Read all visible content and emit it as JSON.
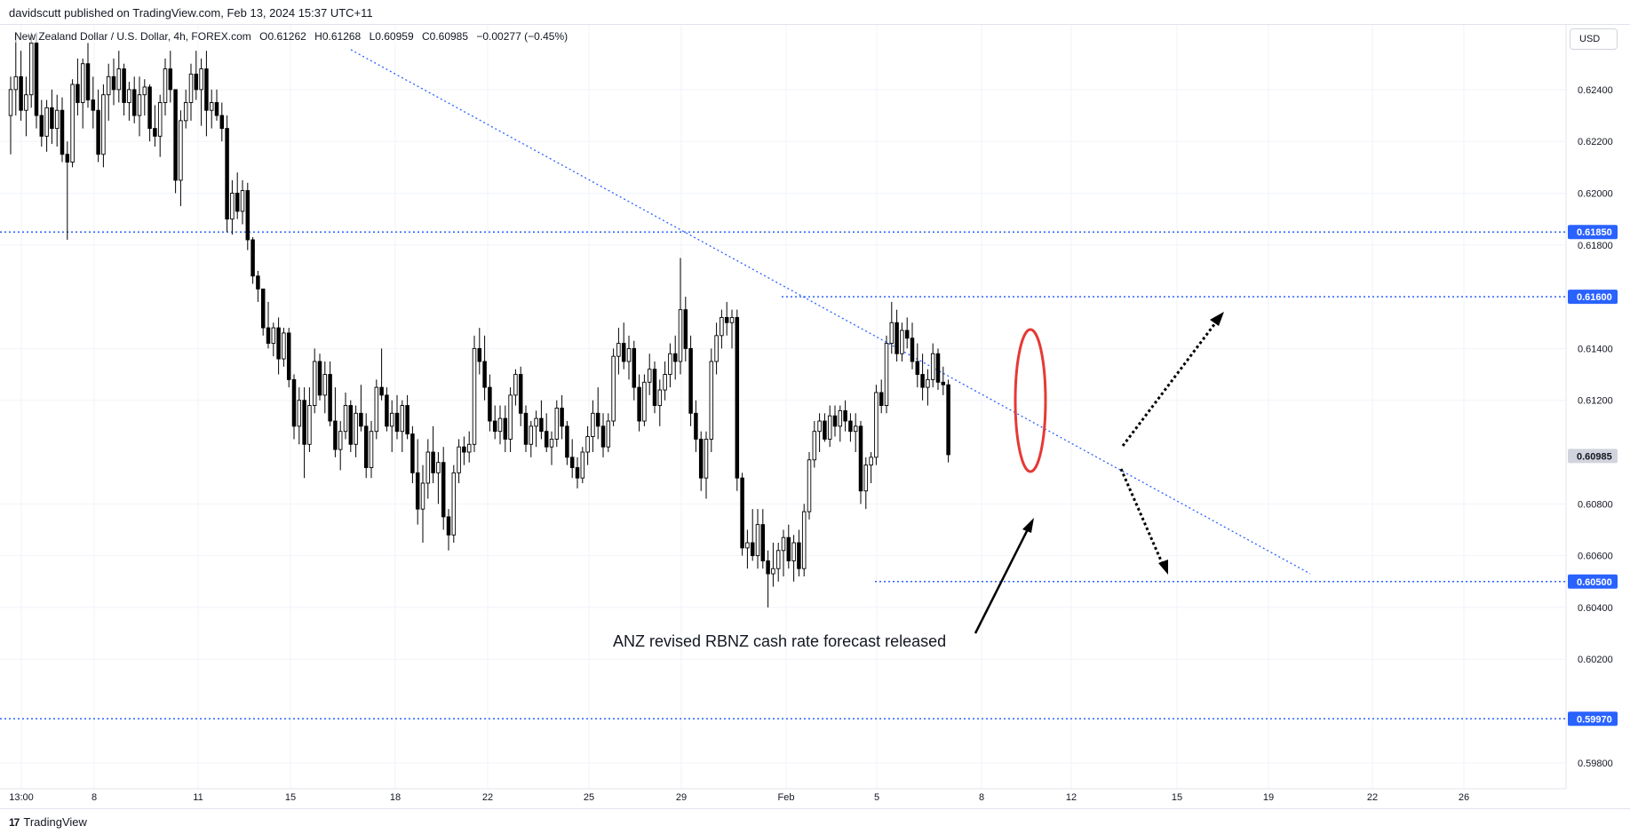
{
  "header": {
    "publish_line": "davidscutt published on TradingView.com, Feb 13, 2024 15:37 UTC+11"
  },
  "legend": {
    "symbol": "New Zealand Dollar / U.S. Dollar, 4h, FOREX.com",
    "open": "O0.61262",
    "high": "H0.61268",
    "low": "L0.60959",
    "close": "C0.60985",
    "change": "−0.00277 (−0.45%)"
  },
  "currency_button": "USD",
  "annotation": "ANZ revised RBNZ cash rate forecast released",
  "footer": {
    "brand": "TradingView",
    "logo": "17"
  },
  "colors": {
    "candle_up_fill": "#ffffff",
    "candle_down_fill": "#000000",
    "level_line": "#2962ff",
    "trend_line": "#2962ff",
    "highlight_ellipse": "#e53935",
    "arrow": "#000000",
    "current_price_badge": "#d1d4dc",
    "level_badge": "#2962ff"
  },
  "chart_data": {
    "type": "candlestick",
    "timeframe": "4h",
    "x_ticks": [
      "13:00",
      "8",
      "11",
      "15",
      "18",
      "22",
      "25",
      "29",
      "Feb",
      "5",
      "8",
      "12",
      "15",
      "19",
      "22",
      "26"
    ],
    "y_ticks": [
      "0.62400",
      "0.62200",
      "0.62000",
      "0.61800",
      "0.61400",
      "0.61200",
      "0.60800",
      "0.60600",
      "0.60400",
      "0.60200",
      "0.59800"
    ],
    "ylim": [
      0.597,
      0.6265
    ],
    "price_labels": [
      {
        "value": 0.6185,
        "text": "0.61850",
        "style": "level"
      },
      {
        "value": 0.616,
        "text": "0.61600",
        "style": "level"
      },
      {
        "value": 0.60985,
        "text": "0.60985",
        "style": "current"
      },
      {
        "value": 0.605,
        "text": "0.60500",
        "style": "level"
      },
      {
        "value": 0.5997,
        "text": "0.59970",
        "style": "level"
      }
    ],
    "horizontal_levels": [
      0.6185,
      0.616,
      0.605,
      0.5997
    ],
    "candles": [
      [
        0.623,
        0.6245,
        0.6215,
        0.624
      ],
      [
        0.624,
        0.6262,
        0.623,
        0.6245
      ],
      [
        0.6245,
        0.6255,
        0.6228,
        0.6232
      ],
      [
        0.6232,
        0.6245,
        0.6222,
        0.6238
      ],
      [
        0.6238,
        0.6262,
        0.6233,
        0.6258
      ],
      [
        0.6258,
        0.6262,
        0.6225,
        0.623
      ],
      [
        0.623,
        0.6236,
        0.6218,
        0.6222
      ],
      [
        0.6222,
        0.6236,
        0.6216,
        0.6233
      ],
      [
        0.6233,
        0.624,
        0.6219,
        0.6225
      ],
      [
        0.6225,
        0.6238,
        0.6218,
        0.6232
      ],
      [
        0.6232,
        0.6237,
        0.6212,
        0.6215
      ],
      [
        0.6215,
        0.622,
        0.6182,
        0.6212
      ],
      [
        0.6212,
        0.6244,
        0.621,
        0.6242
      ],
      [
        0.6242,
        0.6252,
        0.623,
        0.6235
      ],
      [
        0.6235,
        0.6252,
        0.6225,
        0.625
      ],
      [
        0.625,
        0.6258,
        0.6233,
        0.6236
      ],
      [
        0.6236,
        0.6245,
        0.6225,
        0.6232
      ],
      [
        0.6232,
        0.624,
        0.6212,
        0.6215
      ],
      [
        0.6215,
        0.6242,
        0.621,
        0.6238
      ],
      [
        0.6238,
        0.625,
        0.6228,
        0.6245
      ],
      [
        0.6245,
        0.6252,
        0.6234,
        0.624
      ],
      [
        0.624,
        0.6255,
        0.6235,
        0.6248
      ],
      [
        0.6248,
        0.625,
        0.623,
        0.6235
      ],
      [
        0.6235,
        0.6243,
        0.6228,
        0.624
      ],
      [
        0.624,
        0.6245,
        0.6227,
        0.623
      ],
      [
        0.623,
        0.6245,
        0.6222,
        0.6238
      ],
      [
        0.6238,
        0.6244,
        0.623,
        0.6241
      ],
      [
        0.6241,
        0.6242,
        0.622,
        0.6225
      ],
      [
        0.6225,
        0.6234,
        0.6218,
        0.6222
      ],
      [
        0.6222,
        0.6238,
        0.6214,
        0.6235
      ],
      [
        0.6235,
        0.6252,
        0.623,
        0.6248
      ],
      [
        0.6248,
        0.6255,
        0.6235,
        0.624
      ],
      [
        0.624,
        0.624,
        0.62,
        0.6205
      ],
      [
        0.6205,
        0.6232,
        0.6195,
        0.6228
      ],
      [
        0.6228,
        0.624,
        0.6225,
        0.6235
      ],
      [
        0.6235,
        0.625,
        0.6228,
        0.6246
      ],
      [
        0.6246,
        0.6255,
        0.6236,
        0.624
      ],
      [
        0.624,
        0.6252,
        0.6226,
        0.6248
      ],
      [
        0.6248,
        0.6255,
        0.6222,
        0.6232
      ],
      [
        0.6232,
        0.624,
        0.6225,
        0.6235
      ],
      [
        0.6235,
        0.624,
        0.6228,
        0.623
      ],
      [
        0.623,
        0.6235,
        0.622,
        0.6225
      ],
      [
        0.6225,
        0.623,
        0.6185,
        0.619
      ],
      [
        0.619,
        0.6205,
        0.6184,
        0.62
      ],
      [
        0.62,
        0.6208,
        0.619,
        0.6193
      ],
      [
        0.6193,
        0.6205,
        0.6188,
        0.6201
      ],
      [
        0.6201,
        0.6204,
        0.6178,
        0.6182
      ],
      [
        0.6182,
        0.6183,
        0.6165,
        0.6168
      ],
      [
        0.6168,
        0.617,
        0.6158,
        0.6163
      ],
      [
        0.6163,
        0.6163,
        0.6145,
        0.6148
      ],
      [
        0.6148,
        0.6158,
        0.614,
        0.6142
      ],
      [
        0.6142,
        0.615,
        0.6137,
        0.6148
      ],
      [
        0.6148,
        0.6152,
        0.613,
        0.6136
      ],
      [
        0.6136,
        0.6148,
        0.6133,
        0.6146
      ],
      [
        0.6146,
        0.6148,
        0.6125,
        0.6128
      ],
      [
        0.6128,
        0.613,
        0.6105,
        0.611
      ],
      [
        0.611,
        0.6125,
        0.6103,
        0.612
      ],
      [
        0.612,
        0.6125,
        0.609,
        0.6103
      ],
      [
        0.6103,
        0.6125,
        0.61,
        0.6118
      ],
      [
        0.6118,
        0.614,
        0.6115,
        0.6135
      ],
      [
        0.6135,
        0.6138,
        0.612,
        0.6122
      ],
      [
        0.6122,
        0.6135,
        0.6115,
        0.613
      ],
      [
        0.613,
        0.6135,
        0.611,
        0.6112
      ],
      [
        0.6112,
        0.6125,
        0.6098,
        0.6101
      ],
      [
        0.6101,
        0.6112,
        0.6093,
        0.6108
      ],
      [
        0.6108,
        0.6123,
        0.6105,
        0.6118
      ],
      [
        0.6118,
        0.612,
        0.61,
        0.6103
      ],
      [
        0.6103,
        0.6118,
        0.6098,
        0.6115
      ],
      [
        0.6115,
        0.6126,
        0.6108,
        0.611
      ],
      [
        0.611,
        0.6115,
        0.609,
        0.6094
      ],
      [
        0.6094,
        0.6112,
        0.609,
        0.6108
      ],
      [
        0.6108,
        0.6128,
        0.6105,
        0.6125
      ],
      [
        0.6125,
        0.614,
        0.612,
        0.6122
      ],
      [
        0.6122,
        0.6125,
        0.6108,
        0.611
      ],
      [
        0.611,
        0.612,
        0.61,
        0.6115
      ],
      [
        0.6115,
        0.6122,
        0.6105,
        0.6108
      ],
      [
        0.6108,
        0.612,
        0.61,
        0.6118
      ],
      [
        0.6118,
        0.6122,
        0.6105,
        0.6107
      ],
      [
        0.6107,
        0.611,
        0.6088,
        0.6092
      ],
      [
        0.6092,
        0.6105,
        0.6072,
        0.6078
      ],
      [
        0.6078,
        0.6095,
        0.6065,
        0.6088
      ],
      [
        0.6088,
        0.6105,
        0.6082,
        0.61
      ],
      [
        0.61,
        0.611,
        0.6088,
        0.6092
      ],
      [
        0.6092,
        0.61,
        0.608,
        0.6096
      ],
      [
        0.6096,
        0.6102,
        0.607,
        0.6075
      ],
      [
        0.6075,
        0.6078,
        0.6062,
        0.6068
      ],
      [
        0.6068,
        0.6095,
        0.6065,
        0.6092
      ],
      [
        0.6092,
        0.6105,
        0.6088,
        0.6102
      ],
      [
        0.6102,
        0.6106,
        0.6095,
        0.61
      ],
      [
        0.61,
        0.6108,
        0.6096,
        0.6103
      ],
      [
        0.6103,
        0.6145,
        0.61,
        0.614
      ],
      [
        0.614,
        0.6148,
        0.613,
        0.6135
      ],
      [
        0.6135,
        0.6145,
        0.612,
        0.6125
      ],
      [
        0.6125,
        0.613,
        0.6108,
        0.6112
      ],
      [
        0.6112,
        0.6118,
        0.6105,
        0.6108
      ],
      [
        0.6108,
        0.6118,
        0.6103,
        0.6113
      ],
      [
        0.6113,
        0.6118,
        0.61,
        0.6105
      ],
      [
        0.6105,
        0.6125,
        0.61,
        0.6122
      ],
      [
        0.6122,
        0.6132,
        0.6118,
        0.613
      ],
      [
        0.613,
        0.6133,
        0.611,
        0.6115
      ],
      [
        0.6115,
        0.6118,
        0.61,
        0.6103
      ],
      [
        0.6103,
        0.6112,
        0.6098,
        0.611
      ],
      [
        0.611,
        0.6116,
        0.6102,
        0.6113
      ],
      [
        0.6113,
        0.612,
        0.6105,
        0.6108
      ],
      [
        0.6108,
        0.6115,
        0.61,
        0.6102
      ],
      [
        0.6102,
        0.6108,
        0.6095,
        0.6105
      ],
      [
        0.6105,
        0.612,
        0.6102,
        0.6117
      ],
      [
        0.6117,
        0.6122,
        0.6105,
        0.611
      ],
      [
        0.611,
        0.6112,
        0.6095,
        0.6098
      ],
      [
        0.6098,
        0.6105,
        0.609,
        0.6094
      ],
      [
        0.6094,
        0.6098,
        0.6086,
        0.609
      ],
      [
        0.609,
        0.6102,
        0.6088,
        0.61
      ],
      [
        0.61,
        0.611,
        0.6095,
        0.6106
      ],
      [
        0.6106,
        0.612,
        0.61,
        0.6115
      ],
      [
        0.6115,
        0.6125,
        0.6105,
        0.611
      ],
      [
        0.611,
        0.6115,
        0.6098,
        0.6102
      ],
      [
        0.6102,
        0.6115,
        0.61,
        0.6112
      ],
      [
        0.6112,
        0.614,
        0.611,
        0.6137
      ],
      [
        0.6137,
        0.6148,
        0.613,
        0.6142
      ],
      [
        0.6142,
        0.615,
        0.6132,
        0.6135
      ],
      [
        0.6135,
        0.6145,
        0.6128,
        0.614
      ],
      [
        0.614,
        0.6143,
        0.612,
        0.6125
      ],
      [
        0.6125,
        0.613,
        0.6108,
        0.6112
      ],
      [
        0.6112,
        0.613,
        0.611,
        0.6127
      ],
      [
        0.6127,
        0.6138,
        0.6122,
        0.6132
      ],
      [
        0.6132,
        0.6135,
        0.6115,
        0.6118
      ],
      [
        0.6118,
        0.6128,
        0.611,
        0.6124
      ],
      [
        0.6124,
        0.6135,
        0.612,
        0.613
      ],
      [
        0.613,
        0.6142,
        0.6125,
        0.6138
      ],
      [
        0.6138,
        0.6145,
        0.6128,
        0.6135
      ],
      [
        0.6135,
        0.6175,
        0.613,
        0.6155
      ],
      [
        0.6155,
        0.616,
        0.6135,
        0.614
      ],
      [
        0.614,
        0.6145,
        0.611,
        0.6115
      ],
      [
        0.6115,
        0.612,
        0.61,
        0.6105
      ],
      [
        0.6105,
        0.6108,
        0.6085,
        0.609
      ],
      [
        0.609,
        0.6108,
        0.6082,
        0.6105
      ],
      [
        0.6105,
        0.614,
        0.61,
        0.6135
      ],
      [
        0.6135,
        0.615,
        0.613,
        0.6145
      ],
      [
        0.6145,
        0.6155,
        0.614,
        0.6152
      ],
      [
        0.6152,
        0.6158,
        0.6145,
        0.615
      ],
      [
        0.615,
        0.6155,
        0.614,
        0.6152
      ],
      [
        0.6152,
        0.6155,
        0.6085,
        0.609
      ],
      [
        0.609,
        0.6092,
        0.606,
        0.6063
      ],
      [
        0.6063,
        0.607,
        0.6055,
        0.6065
      ],
      [
        0.6065,
        0.6078,
        0.6058,
        0.606
      ],
      [
        0.606,
        0.6078,
        0.6055,
        0.6072
      ],
      [
        0.6072,
        0.6078,
        0.6055,
        0.6058
      ],
      [
        0.6058,
        0.6062,
        0.604,
        0.6053
      ],
      [
        0.6053,
        0.6065,
        0.6048,
        0.6055
      ],
      [
        0.6055,
        0.6065,
        0.605,
        0.6062
      ],
      [
        0.6062,
        0.607,
        0.6052,
        0.6067
      ],
      [
        0.6067,
        0.6072,
        0.6055,
        0.6058
      ],
      [
        0.6058,
        0.6068,
        0.605,
        0.6065
      ],
      [
        0.6065,
        0.607,
        0.6052,
        0.6055
      ],
      [
        0.6055,
        0.608,
        0.6052,
        0.6077
      ],
      [
        0.6077,
        0.61,
        0.6074,
        0.6097
      ],
      [
        0.6097,
        0.6112,
        0.6094,
        0.6108
      ],
      [
        0.6108,
        0.6115,
        0.61,
        0.6112
      ],
      [
        0.6112,
        0.6115,
        0.6104,
        0.6105
      ],
      [
        0.6105,
        0.6118,
        0.6102,
        0.6114
      ],
      [
        0.6114,
        0.6118,
        0.6106,
        0.611
      ],
      [
        0.611,
        0.6118,
        0.6104,
        0.6116
      ],
      [
        0.6116,
        0.612,
        0.6108,
        0.6112
      ],
      [
        0.6112,
        0.6115,
        0.6104,
        0.6108
      ],
      [
        0.6108,
        0.6115,
        0.61,
        0.611
      ],
      [
        0.611,
        0.6112,
        0.608,
        0.6085
      ],
      [
        0.6085,
        0.6098,
        0.6078,
        0.6095
      ],
      [
        0.6095,
        0.61,
        0.6088,
        0.6098
      ],
      [
        0.6098,
        0.6126,
        0.6095,
        0.6123
      ],
      [
        0.6123,
        0.6128,
        0.6115,
        0.6118
      ],
      [
        0.6118,
        0.6145,
        0.6115,
        0.6142
      ],
      [
        0.6142,
        0.6158,
        0.6138,
        0.615
      ],
      [
        0.615,
        0.6155,
        0.6135,
        0.6138
      ],
      [
        0.6138,
        0.615,
        0.6135,
        0.6147
      ],
      [
        0.6147,
        0.6152,
        0.614,
        0.6144
      ],
      [
        0.6144,
        0.615,
        0.6132,
        0.6135
      ],
      [
        0.6135,
        0.6142,
        0.6125,
        0.613
      ],
      [
        0.613,
        0.6138,
        0.612,
        0.6125
      ],
      [
        0.6125,
        0.6132,
        0.6118,
        0.6128
      ],
      [
        0.6128,
        0.6142,
        0.6125,
        0.6138
      ],
      [
        0.6138,
        0.614,
        0.6124,
        0.6127
      ],
      [
        0.6127,
        0.6133,
        0.6122,
        0.6126
      ],
      [
        0.6126,
        0.6128,
        0.6096,
        0.6099
      ]
    ]
  }
}
